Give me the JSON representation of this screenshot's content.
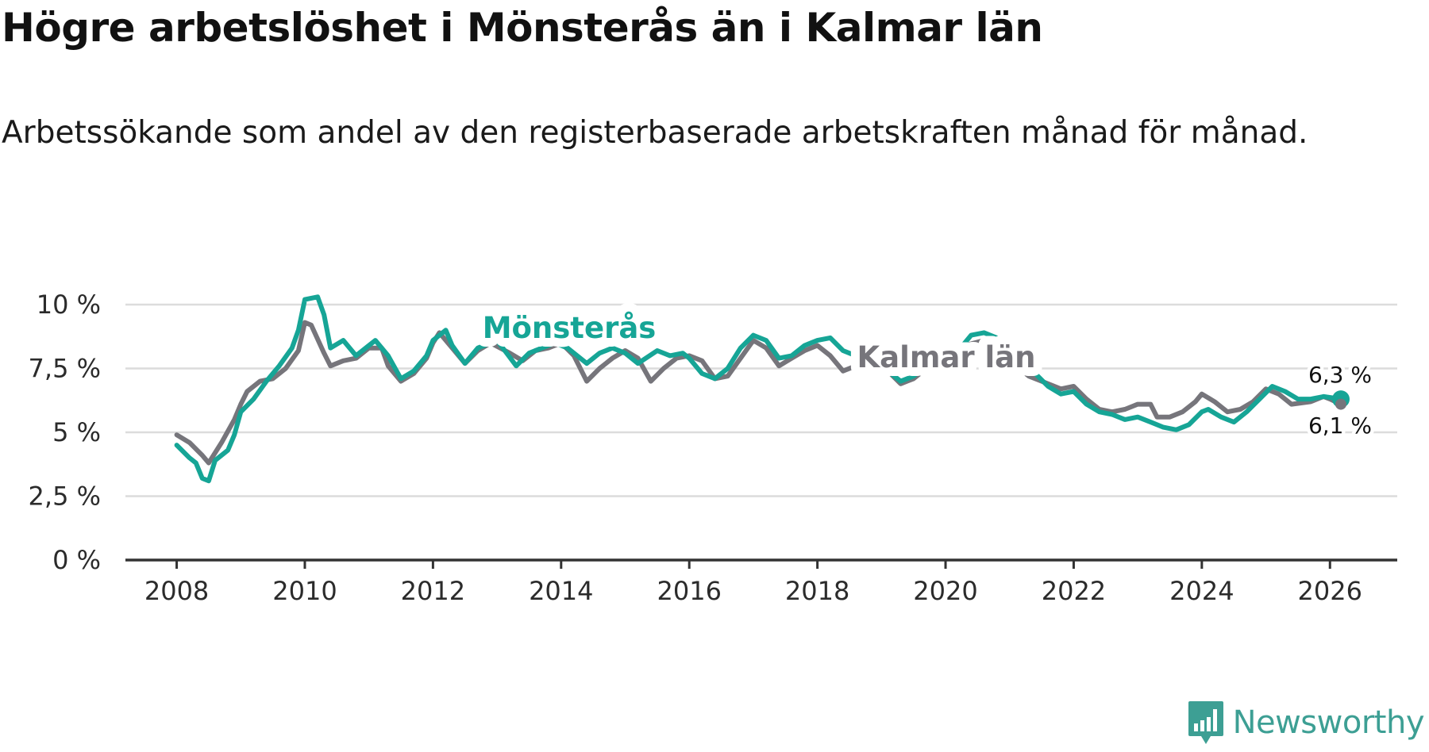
{
  "header": {
    "title": "Högre arbetslöshet i Mönsterås än i Kalmar län",
    "subtitle": "Arbetssökande som andel av den registerbaserade arbetskraften månad för månad."
  },
  "brand": {
    "name": "Newsworthy",
    "icon": "newsworthy-logo-icon"
  },
  "colors": {
    "monsteras": "#16a596",
    "kalmar": "#76757b",
    "grid": "#dcdcdc",
    "axis": "#333333",
    "brand": "#3d9f94"
  },
  "chart_data": {
    "type": "line",
    "title": "Högre arbetslöshet i Mönsterås än i Kalmar län",
    "xlabel": "",
    "ylabel": "",
    "xlim": [
      2007.2,
      2027.05
    ],
    "ylim": [
      0,
      10
    ],
    "y_ticks": [
      0,
      2.5,
      5,
      7.5,
      10
    ],
    "y_tick_labels": [
      "0 %",
      "2,5 %",
      "5 %",
      "7,5 %",
      "10 %"
    ],
    "x_ticks": [
      2008,
      2010,
      2012,
      2014,
      2016,
      2018,
      2020,
      2022,
      2024,
      2026
    ],
    "x_tick_labels": [
      "2008",
      "2010",
      "2012",
      "2014",
      "2016",
      "2018",
      "2020",
      "2022",
      "2024",
      "2026"
    ],
    "grid": true,
    "legend": "inline labels",
    "series": [
      {
        "name": "Kalmar län",
        "label": "Kalmar län",
        "color": "#76757b",
        "end_label": "6,1 %",
        "points": [
          [
            2008.0,
            4.9
          ],
          [
            2008.2,
            4.6
          ],
          [
            2008.4,
            4.1
          ],
          [
            2008.5,
            3.8
          ],
          [
            2008.7,
            4.6
          ],
          [
            2008.9,
            5.5
          ],
          [
            2009.0,
            6.1
          ],
          [
            2009.1,
            6.6
          ],
          [
            2009.3,
            7.0
          ],
          [
            2009.5,
            7.1
          ],
          [
            2009.7,
            7.5
          ],
          [
            2009.9,
            8.2
          ],
          [
            2010.0,
            9.3
          ],
          [
            2010.1,
            9.2
          ],
          [
            2010.3,
            8.1
          ],
          [
            2010.4,
            7.6
          ],
          [
            2010.6,
            7.8
          ],
          [
            2010.8,
            7.9
          ],
          [
            2011.0,
            8.3
          ],
          [
            2011.2,
            8.3
          ],
          [
            2011.3,
            7.6
          ],
          [
            2011.5,
            7.0
          ],
          [
            2011.7,
            7.3
          ],
          [
            2011.9,
            7.9
          ],
          [
            2012.0,
            8.5
          ],
          [
            2012.1,
            8.9
          ],
          [
            2012.3,
            8.3
          ],
          [
            2012.5,
            7.7
          ],
          [
            2012.7,
            8.2
          ],
          [
            2012.9,
            8.5
          ],
          [
            2013.2,
            8.1
          ],
          [
            2013.4,
            7.8
          ],
          [
            2013.6,
            8.2
          ],
          [
            2013.8,
            8.3
          ],
          [
            2014.0,
            8.5
          ],
          [
            2014.2,
            8.0
          ],
          [
            2014.4,
            7.0
          ],
          [
            2014.6,
            7.5
          ],
          [
            2014.8,
            7.9
          ],
          [
            2015.0,
            8.2
          ],
          [
            2015.2,
            7.9
          ],
          [
            2015.4,
            7.0
          ],
          [
            2015.6,
            7.5
          ],
          [
            2015.8,
            7.9
          ],
          [
            2016.0,
            8.0
          ],
          [
            2016.2,
            7.8
          ],
          [
            2016.4,
            7.1
          ],
          [
            2016.6,
            7.2
          ],
          [
            2016.8,
            7.9
          ],
          [
            2017.0,
            8.6
          ],
          [
            2017.2,
            8.3
          ],
          [
            2017.4,
            7.6
          ],
          [
            2017.6,
            7.9
          ],
          [
            2017.8,
            8.2
          ],
          [
            2018.0,
            8.4
          ],
          [
            2018.2,
            8.0
          ],
          [
            2018.4,
            7.4
          ],
          [
            2018.6,
            7.6
          ],
          [
            2018.9,
            7.7
          ],
          [
            2019.1,
            7.4
          ],
          [
            2019.3,
            6.9
          ],
          [
            2019.5,
            7.1
          ],
          [
            2019.7,
            7.5
          ],
          [
            2020.0,
            7.9
          ],
          [
            2020.3,
            8.4
          ],
          [
            2020.6,
            8.6
          ],
          [
            2020.9,
            8.1
          ],
          [
            2021.1,
            7.6
          ],
          [
            2021.3,
            7.2
          ],
          [
            2021.5,
            7.0
          ],
          [
            2021.8,
            6.7
          ],
          [
            2022.0,
            6.8
          ],
          [
            2022.2,
            6.3
          ],
          [
            2022.4,
            5.9
          ],
          [
            2022.6,
            5.8
          ],
          [
            2022.8,
            5.9
          ],
          [
            2023.0,
            6.1
          ],
          [
            2023.2,
            6.1
          ],
          [
            2023.3,
            5.6
          ],
          [
            2023.5,
            5.6
          ],
          [
            2023.7,
            5.8
          ],
          [
            2023.9,
            6.2
          ],
          [
            2024.0,
            6.5
          ],
          [
            2024.2,
            6.2
          ],
          [
            2024.4,
            5.8
          ],
          [
            2024.6,
            5.9
          ],
          [
            2024.8,
            6.2
          ],
          [
            2025.0,
            6.7
          ],
          [
            2025.2,
            6.5
          ],
          [
            2025.4,
            6.1
          ],
          [
            2025.7,
            6.2
          ],
          [
            2025.9,
            6.4
          ],
          [
            2026.0,
            6.3
          ],
          [
            2026.17,
            6.1
          ]
        ]
      },
      {
        "name": "Mönsterås",
        "label": "Mönsterås",
        "color": "#16a596",
        "end_label": "6,3 %",
        "points": [
          [
            2008.0,
            4.5
          ],
          [
            2008.2,
            4.0
          ],
          [
            2008.3,
            3.8
          ],
          [
            2008.4,
            3.2
          ],
          [
            2008.5,
            3.1
          ],
          [
            2008.6,
            3.9
          ],
          [
            2008.8,
            4.3
          ],
          [
            2008.9,
            4.9
          ],
          [
            2009.0,
            5.8
          ],
          [
            2009.2,
            6.3
          ],
          [
            2009.4,
            7.0
          ],
          [
            2009.6,
            7.6
          ],
          [
            2009.8,
            8.3
          ],
          [
            2009.9,
            9.0
          ],
          [
            2010.0,
            10.2
          ],
          [
            2010.2,
            10.3
          ],
          [
            2010.3,
            9.6
          ],
          [
            2010.4,
            8.3
          ],
          [
            2010.6,
            8.6
          ],
          [
            2010.8,
            8.0
          ],
          [
            2011.0,
            8.4
          ],
          [
            2011.1,
            8.6
          ],
          [
            2011.3,
            8.0
          ],
          [
            2011.5,
            7.1
          ],
          [
            2011.7,
            7.4
          ],
          [
            2011.9,
            8.0
          ],
          [
            2012.0,
            8.6
          ],
          [
            2012.2,
            9.0
          ],
          [
            2012.3,
            8.4
          ],
          [
            2012.5,
            7.7
          ],
          [
            2012.7,
            8.3
          ],
          [
            2013.0,
            8.6
          ],
          [
            2013.3,
            7.6
          ],
          [
            2013.5,
            8.1
          ],
          [
            2013.7,
            8.3
          ],
          [
            2013.9,
            8.5
          ],
          [
            2014.1,
            8.3
          ],
          [
            2014.4,
            7.7
          ],
          [
            2014.6,
            8.1
          ],
          [
            2014.8,
            8.3
          ],
          [
            2015.0,
            8.1
          ],
          [
            2015.2,
            7.7
          ],
          [
            2015.5,
            8.2
          ],
          [
            2015.7,
            8.0
          ],
          [
            2015.9,
            8.1
          ],
          [
            2016.0,
            7.9
          ],
          [
            2016.2,
            7.3
          ],
          [
            2016.4,
            7.1
          ],
          [
            2016.6,
            7.5
          ],
          [
            2016.8,
            8.3
          ],
          [
            2017.0,
            8.8
          ],
          [
            2017.2,
            8.6
          ],
          [
            2017.4,
            7.9
          ],
          [
            2017.6,
            8.0
          ],
          [
            2017.8,
            8.4
          ],
          [
            2018.0,
            8.6
          ],
          [
            2018.2,
            8.7
          ],
          [
            2018.4,
            8.2
          ],
          [
            2018.6,
            8.0
          ],
          [
            2018.9,
            7.8
          ],
          [
            2019.1,
            7.4
          ],
          [
            2019.3,
            7.0
          ],
          [
            2019.5,
            7.2
          ],
          [
            2019.7,
            7.6
          ],
          [
            2020.0,
            8.0
          ],
          [
            2020.2,
            8.2
          ],
          [
            2020.4,
            8.8
          ],
          [
            2020.6,
            8.9
          ],
          [
            2020.8,
            8.7
          ],
          [
            2021.0,
            8.4
          ],
          [
            2021.2,
            7.9
          ],
          [
            2021.4,
            7.3
          ],
          [
            2021.6,
            6.8
          ],
          [
            2021.8,
            6.5
          ],
          [
            2022.0,
            6.6
          ],
          [
            2022.2,
            6.1
          ],
          [
            2022.4,
            5.8
          ],
          [
            2022.6,
            5.7
          ],
          [
            2022.8,
            5.5
          ],
          [
            2023.0,
            5.6
          ],
          [
            2023.2,
            5.4
          ],
          [
            2023.4,
            5.2
          ],
          [
            2023.6,
            5.1
          ],
          [
            2023.8,
            5.3
          ],
          [
            2024.0,
            5.8
          ],
          [
            2024.1,
            5.9
          ],
          [
            2024.3,
            5.6
          ],
          [
            2024.5,
            5.4
          ],
          [
            2024.7,
            5.8
          ],
          [
            2024.9,
            6.3
          ],
          [
            2025.1,
            6.8
          ],
          [
            2025.3,
            6.6
          ],
          [
            2025.5,
            6.3
          ],
          [
            2025.7,
            6.3
          ],
          [
            2025.9,
            6.4
          ],
          [
            2026.17,
            6.3
          ]
        ]
      }
    ]
  }
}
